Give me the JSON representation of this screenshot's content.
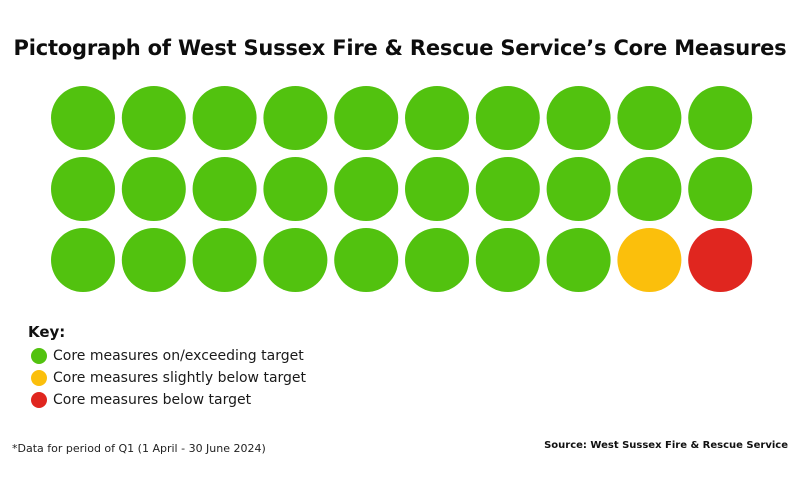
{
  "chart_data": {
    "type": "pictograph",
    "title": "Pictograph of West Sussex Fire & Rescue Service’s Core Measures",
    "grid": {
      "rows": 3,
      "columns": 10
    },
    "categories": [
      {
        "key": "on_target",
        "label": "Core measures on/exceeding target",
        "count": 28,
        "color": "#52c20f"
      },
      {
        "key": "slightly_below",
        "label": "Core measures slightly below target",
        "count": 1,
        "color": "#fbbf0c"
      },
      {
        "key": "below",
        "label": "Core measures below target",
        "count": 1,
        "color": "#e0261f"
      }
    ],
    "key_title": "Key:",
    "footnote": "*Data for period of Q1 (1 April -  30 June 2024)",
    "source": "Source: West Sussex Fire & Rescue Service"
  }
}
